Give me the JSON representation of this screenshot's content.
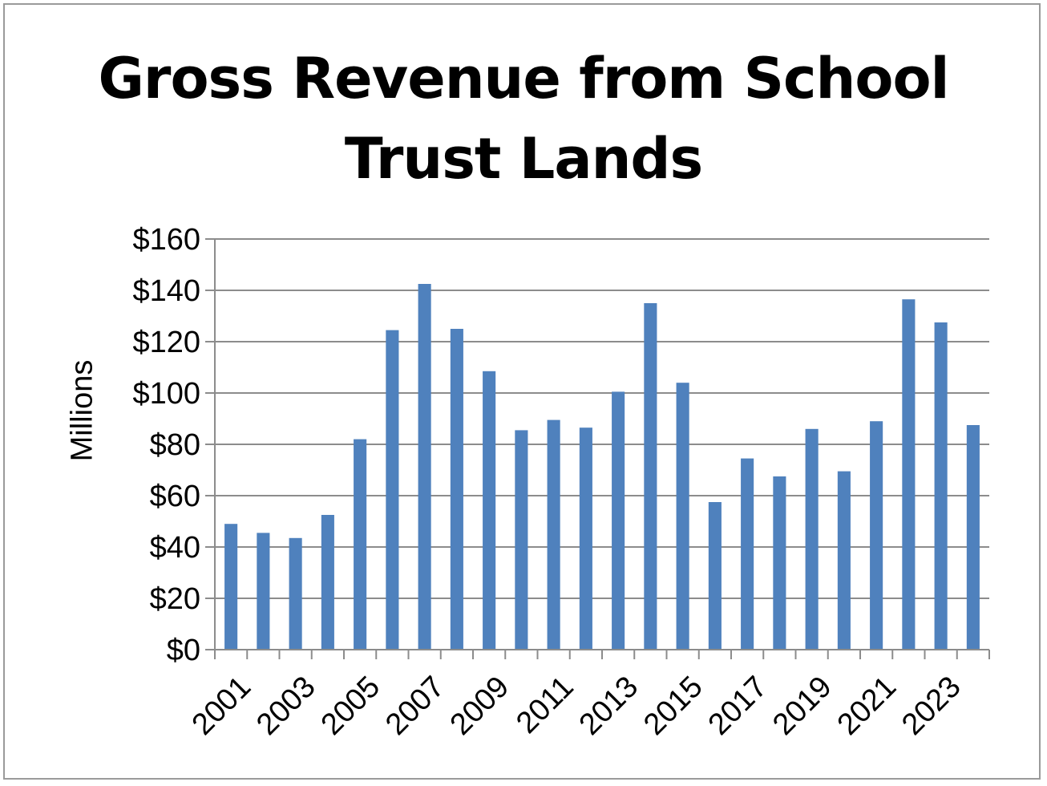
{
  "chart_data": {
    "type": "bar",
    "title": "Gross Revenue from School Trust Lands",
    "title_lines": [
      "Gross Revenue from School",
      "Trust Lands"
    ],
    "xlabel": "",
    "ylabel": "Millions",
    "ylim": [
      0,
      160
    ],
    "yticks": [
      0,
      20,
      40,
      60,
      80,
      100,
      120,
      140,
      160
    ],
    "ytick_labels": [
      "$0",
      "$20",
      "$40",
      "$60",
      "$80",
      "$100",
      "$120",
      "$140",
      "$160"
    ],
    "categories": [
      "2001",
      "2002",
      "2003",
      "2004",
      "2005",
      "2006",
      "2007",
      "2008",
      "2009",
      "2010",
      "2011",
      "2012",
      "2013",
      "2014",
      "2015",
      "2016",
      "2017",
      "2018",
      "2019",
      "2020",
      "2021",
      "2022",
      "2023",
      "2024"
    ],
    "xtick_labels_shown": [
      "2001",
      "2003",
      "2005",
      "2007",
      "2009",
      "2011",
      "2013",
      "2015",
      "2017",
      "2019",
      "2021",
      "2023"
    ],
    "values": [
      49,
      45.5,
      43.5,
      52.5,
      82,
      124.5,
      142.5,
      125,
      108.5,
      85.5,
      89.5,
      86.5,
      100.5,
      135,
      104,
      57.5,
      74.5,
      67.5,
      86,
      69.5,
      89,
      136.5,
      127.5,
      87.5
    ],
    "bar_color": "#4f81bd",
    "grid": true,
    "legend": "none"
  }
}
